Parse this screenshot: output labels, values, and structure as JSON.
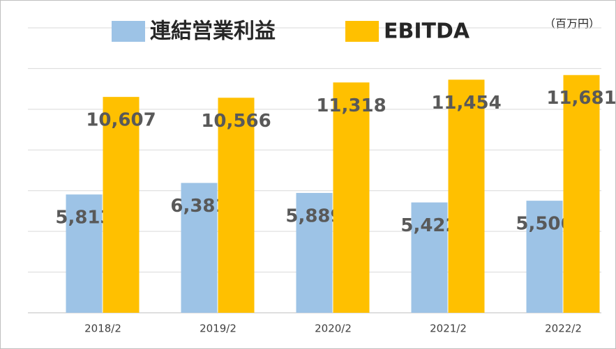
{
  "chart_data": {
    "type": "bar",
    "unit_label": "（百万円）",
    "categories": [
      "2018/2",
      "2019/2",
      "2020/2",
      "2021/2",
      "2022/2"
    ],
    "series": [
      {
        "name": "連結営業利益",
        "color": "#9dc3e6",
        "values": [
          5813,
          6381,
          5889,
          5422,
          5506
        ],
        "value_labels": [
          "5,813",
          "6,381",
          "5,889",
          "5,422",
          "5,506"
        ]
      },
      {
        "name": "EBITDA",
        "color": "#ffc000",
        "values": [
          10607,
          10566,
          11318,
          11454,
          11681
        ],
        "value_labels": [
          "10,607",
          "10,566",
          "11,318",
          "11,454",
          "11,681"
        ]
      }
    ],
    "ylim": [
      0,
      14000
    ],
    "yticks": [
      0,
      2000,
      4000,
      6000,
      8000,
      10000,
      12000,
      14000
    ],
    "grid": true,
    "legend": "top"
  }
}
